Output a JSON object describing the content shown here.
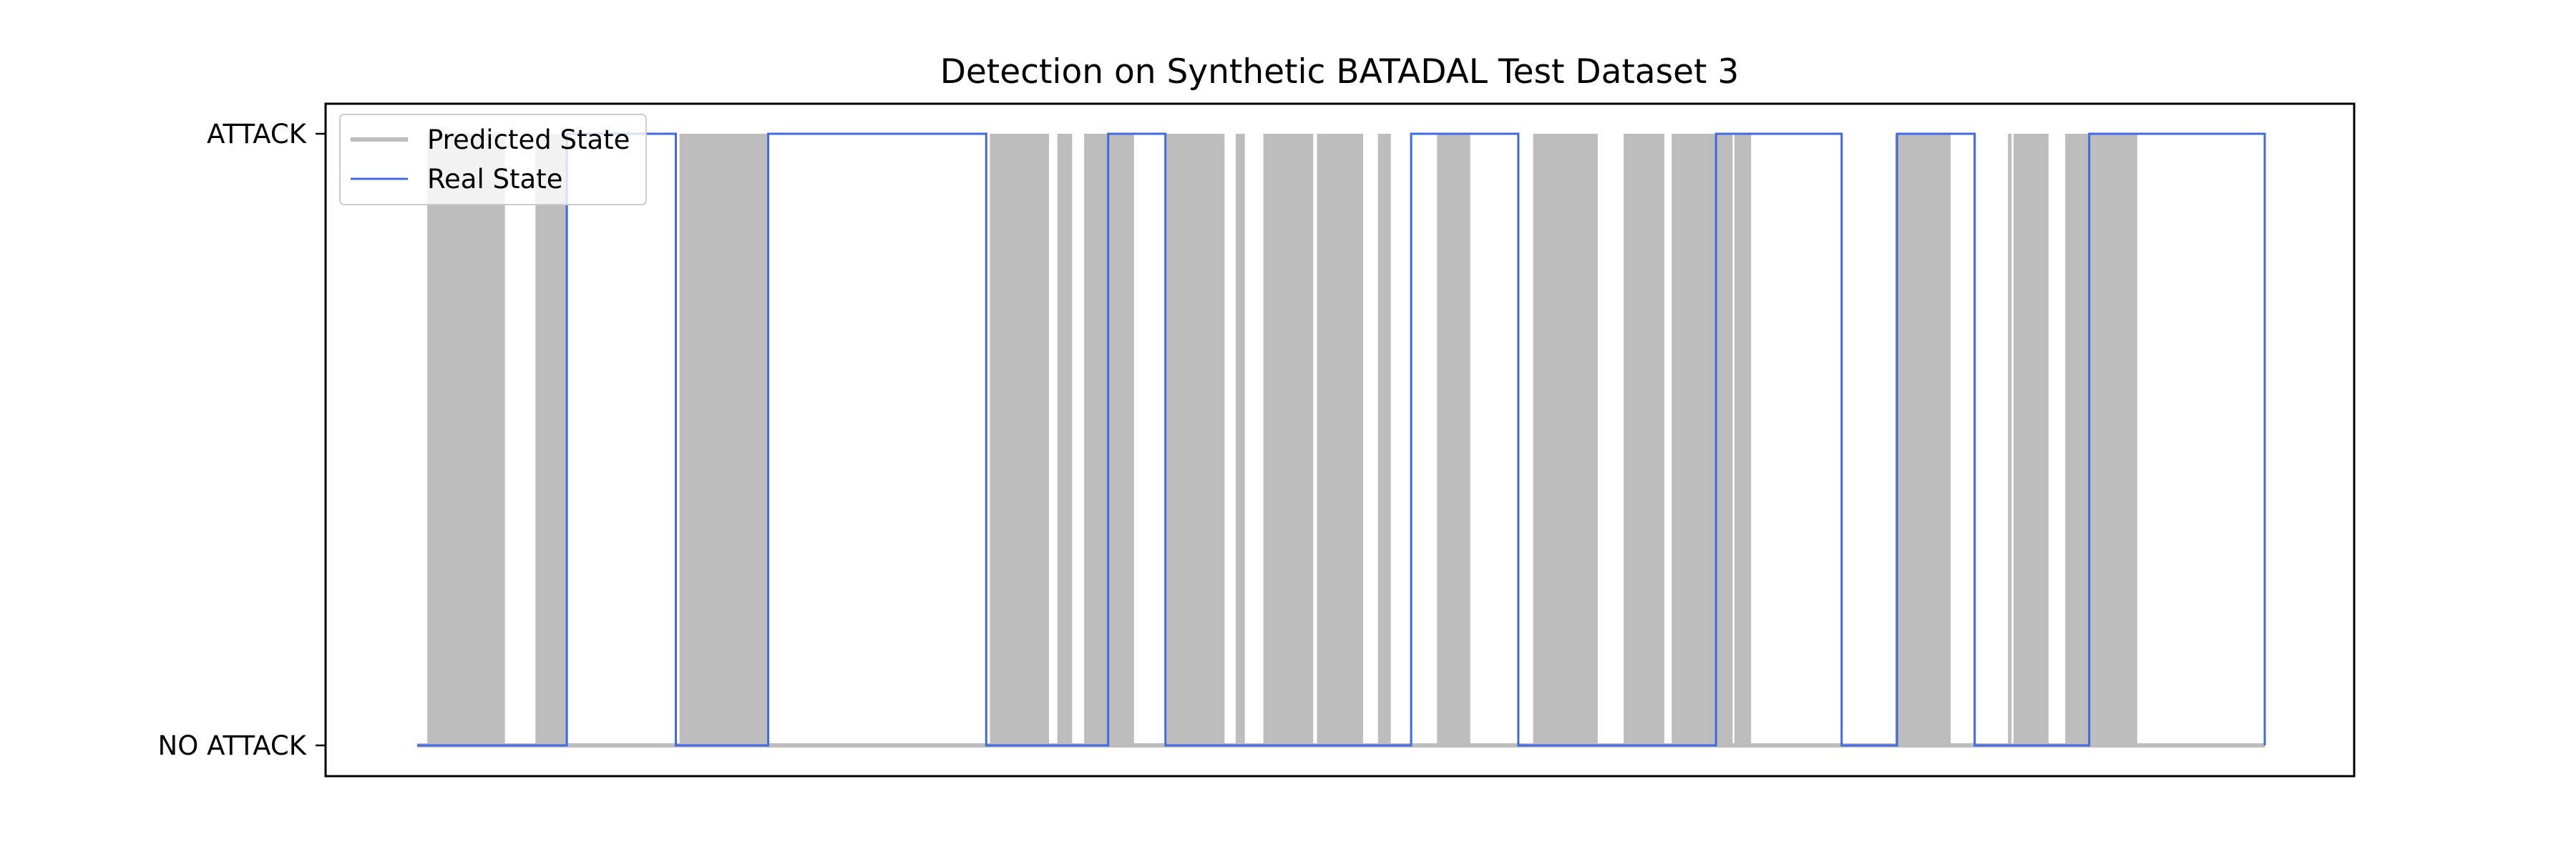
{
  "chart_data": {
    "type": "line",
    "title": "Detection on Synthetic BATADAL Test Dataset 3",
    "xlabel": "",
    "ylabel": "",
    "y_tick_labels": [
      "NO ATTACK",
      "ATTACK"
    ],
    "ylim": [
      "NO ATTACK",
      "ATTACK"
    ],
    "grid": false,
    "legend": {
      "placement": "top-left",
      "entries": [
        "Predicted State",
        "Real State"
      ]
    },
    "x_normalized": true,
    "series": [
      {
        "name": "Predicted State",
        "color": "#bdbdbd",
        "attack_intervals": [
          [
            0.0055,
            0.0475
          ],
          [
            0.064,
            0.081
          ],
          [
            0.142,
            0.19
          ],
          [
            0.31,
            0.342
          ],
          [
            0.3465,
            0.3545
          ],
          [
            0.348,
            0.35
          ],
          [
            0.361,
            0.388
          ],
          [
            0.405,
            0.437
          ],
          [
            0.443,
            0.448
          ],
          [
            0.458,
            0.485
          ],
          [
            0.487,
            0.512
          ],
          [
            0.52,
            0.527
          ],
          [
            0.552,
            0.57
          ],
          [
            0.604,
            0.639
          ],
          [
            0.653,
            0.675
          ],
          [
            0.679,
            0.712
          ],
          [
            0.713,
            0.722
          ],
          [
            0.8,
            0.83
          ],
          [
            0.864,
            0.883
          ],
          [
            0.861,
            0.863
          ],
          [
            0.892,
            0.931
          ]
        ]
      },
      {
        "name": "Real State",
        "color": "#4169e1",
        "attack_intervals": [
          [
            0.081,
            0.14
          ],
          [
            0.19,
            0.308
          ],
          [
            0.374,
            0.405
          ],
          [
            0.538,
            0.596
          ],
          [
            0.703,
            0.771
          ],
          [
            0.801,
            0.843
          ],
          [
            0.905,
            1.0
          ]
        ]
      }
    ]
  }
}
